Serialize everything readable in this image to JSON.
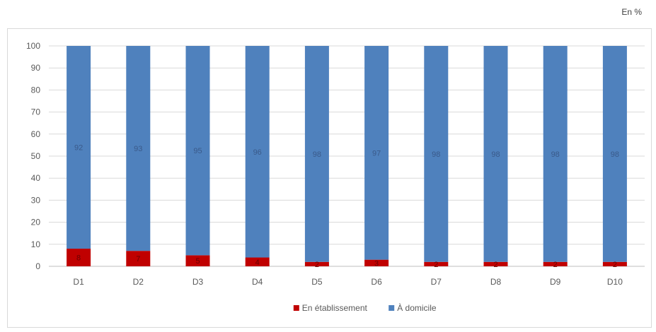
{
  "unit": "En %",
  "colors": {
    "etablissement": "#c00000",
    "domicile": "#4f81bd",
    "grid": "#d9d9d9",
    "axis_text": "#595959",
    "label_text": "#3a5a8a"
  },
  "chart_data": {
    "type": "bar",
    "stacked": true,
    "categories": [
      "D1",
      "D2",
      "D3",
      "D4",
      "D5",
      "D6",
      "D7",
      "D8",
      "D9",
      "D10"
    ],
    "series": [
      {
        "name": "En établissement",
        "values": [
          8,
          7,
          5,
          4,
          2,
          3,
          2,
          2,
          2,
          2
        ]
      },
      {
        "name": "À domicile",
        "values": [
          92,
          93,
          95,
          96,
          98,
          97,
          98,
          98,
          98,
          98
        ]
      }
    ],
    "ylim": [
      0,
      100
    ],
    "yticks": [
      0,
      10,
      20,
      30,
      40,
      50,
      60,
      70,
      80,
      90,
      100
    ],
    "grid": true,
    "legend_position": "bottom",
    "title": "",
    "xlabel": "",
    "ylabel": ""
  }
}
